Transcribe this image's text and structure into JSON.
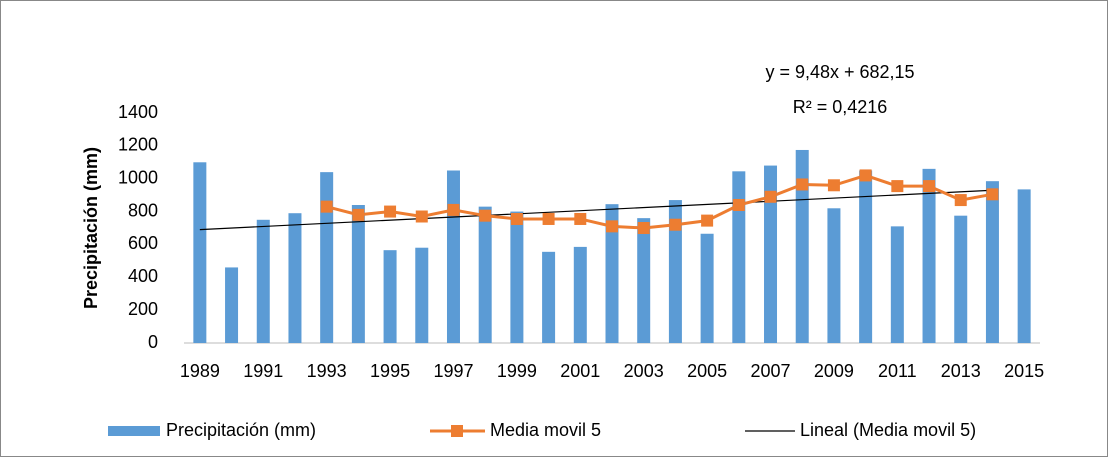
{
  "chart_data": {
    "type": "bar",
    "y_label": "Precipitación (mm)",
    "categories": [
      "1989",
      null,
      "1991",
      null,
      "1993",
      null,
      "1995",
      null,
      "1997",
      null,
      "1999",
      null,
      "2001",
      null,
      "2003",
      null,
      "2005",
      null,
      "2007",
      null,
      "2009",
      null,
      "2011",
      null,
      "2013",
      null,
      "2015"
    ],
    "series": [
      {
        "name": "Precipitación (mm)",
        "color": "#5b9bd5",
        "type": "bar",
        "values": [
          1100,
          460,
          750,
          790,
          1040,
          840,
          565,
          580,
          1050,
          830,
          800,
          555,
          585,
          845,
          760,
          870,
          665,
          1045,
          1080,
          1175,
          820,
          1050,
          710,
          1060,
          775,
          985,
          935
        ]
      },
      {
        "name": "Media movil 5",
        "color": "#ed7d31",
        "type": "line",
        "values": [
          null,
          null,
          null,
          null,
          830,
          780,
          800,
          770,
          810,
          775,
          755,
          755,
          755,
          710,
          700,
          720,
          745,
          840,
          890,
          965,
          960,
          1020,
          955,
          955,
          870,
          905,
          null
        ]
      }
    ],
    "trendline": {
      "name": "Lineal (Media movil 5)",
      "color": "#000000",
      "start": 690,
      "end": 930,
      "equation": "y = 9,48x + 682,15",
      "r2": "R² = 0,4216"
    },
    "ylim": [
      0,
      1400
    ],
    "yticks": [
      0,
      200,
      400,
      600,
      800,
      1000,
      1200,
      1400
    ],
    "grid": false,
    "legend": "bottom"
  }
}
